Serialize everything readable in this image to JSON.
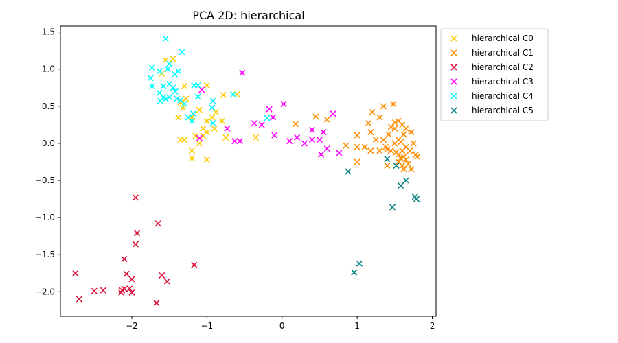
{
  "chart_data": {
    "type": "scatter",
    "title": "PCA 2D: hierarchical",
    "xlabel": "",
    "ylabel": "",
    "xlim": [
      -2.95,
      2.05
    ],
    "ylim": [
      -2.33,
      1.58
    ],
    "xticks": [
      -2,
      -1,
      0,
      1,
      2
    ],
    "xtick_labels": [
      "−2",
      "−1",
      "0",
      "1",
      "2"
    ],
    "yticks": [
      -2.0,
      -1.5,
      -1.0,
      -0.5,
      0.0,
      0.5,
      1.0,
      1.5
    ],
    "ytick_labels": [
      "−2.0",
      "−1.5",
      "−1.0",
      "−0.5",
      "0.0",
      "0.5",
      "1.0",
      "1.5"
    ],
    "grid": false,
    "legend_position": "outside-top-right",
    "marker": "x",
    "series": [
      {
        "name": "hierarchical C0",
        "color": "#ffcc00",
        "points": [
          [
            -1.55,
            1.12
          ],
          [
            -1.45,
            1.14
          ],
          [
            -1.6,
            0.94
          ],
          [
            -1.3,
            0.77
          ],
          [
            -1.35,
            0.55
          ],
          [
            -1.28,
            0.6
          ],
          [
            -1.32,
            0.48
          ],
          [
            -1.1,
            0.45
          ],
          [
            -1.0,
            0.78
          ],
          [
            -0.93,
            0.35
          ],
          [
            -0.88,
            0.42
          ],
          [
            -0.78,
            0.65
          ],
          [
            -0.8,
            0.3
          ],
          [
            -1.0,
            0.3
          ],
          [
            -1.05,
            0.2
          ],
          [
            -1.0,
            0.15
          ],
          [
            -1.05,
            0.1
          ],
          [
            -1.3,
            0.05
          ],
          [
            -1.35,
            0.05
          ],
          [
            -1.2,
            -0.1
          ],
          [
            -1.1,
            0.0
          ],
          [
            -1.2,
            -0.2
          ],
          [
            -1.0,
            -0.22
          ],
          [
            -0.75,
            0.08
          ],
          [
            -0.6,
            0.66
          ],
          [
            -0.35,
            0.08
          ],
          [
            -0.9,
            0.2
          ],
          [
            -1.2,
            0.35
          ],
          [
            -1.38,
            0.35
          ],
          [
            -1.15,
            0.1
          ]
        ]
      },
      {
        "name": "hierarchical C1",
        "color": "#ff8c00",
        "points": [
          [
            0.18,
            0.26
          ],
          [
            0.45,
            0.36
          ],
          [
            0.6,
            0.32
          ],
          [
            0.85,
            -0.03
          ],
          [
            1.0,
            0.11
          ],
          [
            1.0,
            -0.25
          ],
          [
            1.0,
            -0.05
          ],
          [
            1.1,
            -0.05
          ],
          [
            1.15,
            0.27
          ],
          [
            1.18,
            0.15
          ],
          [
            1.18,
            -0.1
          ],
          [
            1.2,
            0.42
          ],
          [
            1.25,
            0.05
          ],
          [
            1.3,
            -0.1
          ],
          [
            1.3,
            0.35
          ],
          [
            1.35,
            0.5
          ],
          [
            1.35,
            0.05
          ],
          [
            1.38,
            -0.05
          ],
          [
            1.4,
            -0.08
          ],
          [
            1.4,
            -0.3
          ],
          [
            1.42,
            0.12
          ],
          [
            1.45,
            -0.1
          ],
          [
            1.48,
            0.53
          ],
          [
            1.5,
            0.28
          ],
          [
            1.5,
            0.2
          ],
          [
            1.5,
            0.0
          ],
          [
            1.52,
            -0.12
          ],
          [
            1.55,
            -0.25
          ],
          [
            1.55,
            0.3
          ],
          [
            1.55,
            0.05
          ],
          [
            1.55,
            -0.15
          ],
          [
            1.58,
            -0.2
          ],
          [
            1.6,
            0.25
          ],
          [
            1.6,
            -0.3
          ],
          [
            1.6,
            -0.1
          ],
          [
            1.62,
            0.12
          ],
          [
            1.62,
            -0.18
          ],
          [
            1.65,
            0.2
          ],
          [
            1.65,
            -0.05
          ],
          [
            1.65,
            -0.22
          ],
          [
            1.68,
            -0.28
          ],
          [
            1.7,
            -0.1
          ],
          [
            1.72,
            0.15
          ],
          [
            1.72,
            -0.35
          ],
          [
            1.75,
            0.0
          ],
          [
            1.78,
            -0.15
          ],
          [
            1.8,
            -0.18
          ],
          [
            1.45,
            0.22
          ],
          [
            1.58,
            0.02
          ],
          [
            1.62,
            -0.35
          ]
        ]
      },
      {
        "name": "hierarchical C2",
        "color": "#dc143c",
        "points": [
          [
            -1.95,
            -0.73
          ],
          [
            -1.65,
            -1.08
          ],
          [
            -1.93,
            -1.21
          ],
          [
            -1.95,
            -1.36
          ],
          [
            -2.1,
            -1.56
          ],
          [
            -1.17,
            -1.64
          ],
          [
            -2.75,
            -1.75
          ],
          [
            -2.07,
            -1.76
          ],
          [
            -1.6,
            -1.78
          ],
          [
            -2.0,
            -1.83
          ],
          [
            -1.53,
            -1.86
          ],
          [
            -2.5,
            -1.99
          ],
          [
            -2.38,
            -1.98
          ],
          [
            -2.13,
            -1.98
          ],
          [
            -2.14,
            -2.01
          ],
          [
            -2.1,
            -1.96
          ],
          [
            -2.03,
            -1.96
          ],
          [
            -2.0,
            -2.01
          ],
          [
            -2.7,
            -2.1
          ],
          [
            -1.67,
            -2.15
          ]
        ]
      },
      {
        "name": "hierarchical C3",
        "color": "#ff00ff",
        "points": [
          [
            -0.53,
            0.95
          ],
          [
            -1.07,
            0.72
          ],
          [
            -0.17,
            0.46
          ],
          [
            0.02,
            0.53
          ],
          [
            -0.12,
            0.35
          ],
          [
            -0.37,
            0.27
          ],
          [
            -0.27,
            0.25
          ],
          [
            -0.73,
            0.2
          ],
          [
            -0.63,
            0.03
          ],
          [
            -0.56,
            0.03
          ],
          [
            -1.1,
            0.07
          ],
          [
            -0.1,
            0.11
          ],
          [
            0.1,
            0.03
          ],
          [
            0.2,
            0.08
          ],
          [
            0.3,
            0.0
          ],
          [
            0.4,
            0.05
          ],
          [
            0.4,
            0.18
          ],
          [
            0.5,
            0.05
          ],
          [
            0.55,
            0.15
          ],
          [
            0.52,
            -0.15
          ],
          [
            0.6,
            -0.07
          ],
          [
            0.68,
            0.4
          ],
          [
            0.76,
            -0.13
          ]
        ]
      },
      {
        "name": "hierarchical C4",
        "color": "#00ffff",
        "points": [
          [
            -1.55,
            1.41
          ],
          [
            -1.33,
            1.23
          ],
          [
            -1.5,
            1.07
          ],
          [
            -1.52,
            1.0
          ],
          [
            -1.43,
            0.93
          ],
          [
            -1.38,
            0.97
          ],
          [
            -1.73,
            1.02
          ],
          [
            -1.63,
            0.97
          ],
          [
            -1.75,
            0.88
          ],
          [
            -1.73,
            0.77
          ],
          [
            -1.63,
            0.68
          ],
          [
            -1.58,
            0.77
          ],
          [
            -1.5,
            0.8
          ],
          [
            -1.45,
            0.75
          ],
          [
            -1.42,
            0.7
          ],
          [
            -1.5,
            0.62
          ],
          [
            -1.58,
            0.62
          ],
          [
            -1.62,
            0.57
          ],
          [
            -1.55,
            0.6
          ],
          [
            -1.4,
            0.6
          ],
          [
            -1.35,
            0.58
          ],
          [
            -1.3,
            0.53
          ],
          [
            -1.17,
            0.78
          ],
          [
            -1.12,
            0.78
          ],
          [
            -1.12,
            0.63
          ],
          [
            -1.18,
            0.4
          ],
          [
            -1.25,
            0.35
          ],
          [
            -1.2,
            0.3
          ],
          [
            -0.92,
            0.57
          ],
          [
            -0.93,
            0.48
          ],
          [
            -0.92,
            0.27
          ],
          [
            -0.65,
            0.66
          ],
          [
            -0.2,
            0.34
          ]
        ]
      },
      {
        "name": "hierarchical C5",
        "color": "#008080",
        "points": [
          [
            0.88,
            -0.38
          ],
          [
            1.4,
            -0.21
          ],
          [
            1.52,
            -0.3
          ],
          [
            1.65,
            -0.5
          ],
          [
            1.58,
            -0.57
          ],
          [
            1.77,
            -0.72
          ],
          [
            1.79,
            -0.75
          ],
          [
            1.47,
            -0.86
          ],
          [
            1.03,
            -1.62
          ],
          [
            0.96,
            -1.74
          ]
        ]
      }
    ]
  }
}
